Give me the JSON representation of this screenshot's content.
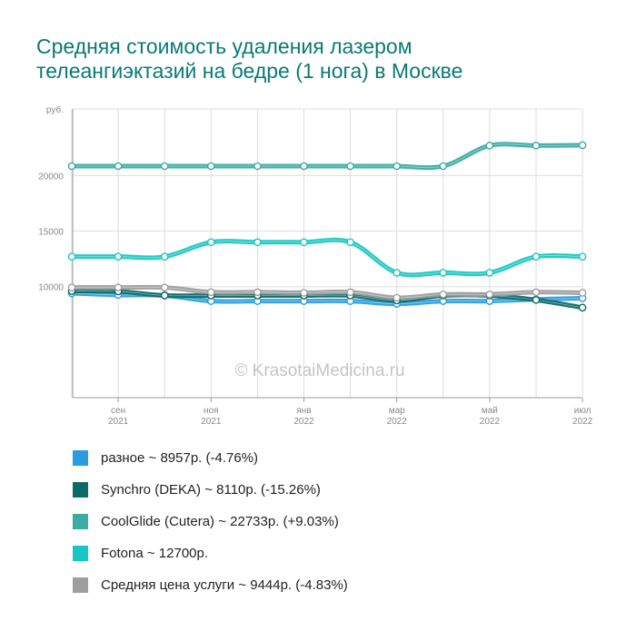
{
  "title_lines": [
    "Средняя стоимость удаления лазером",
    "телеангиэктазий на бедре (1 нога) в Москве"
  ],
  "watermark": "© KrasotaiMedicina.ru",
  "chart_data": {
    "type": "line",
    "unit_label": "руб.",
    "ylim": [
      0,
      26000
    ],
    "yticks": [
      10000,
      15000,
      20000
    ],
    "ytick_labels": [
      "10000",
      "15000",
      "20000"
    ],
    "x": [
      "2021-08",
      "2021-09",
      "2021-10",
      "2021-11",
      "2021-12",
      "2022-01",
      "2022-02",
      "2022-03",
      "2022-04",
      "2022-05",
      "2022-06",
      "2022-07"
    ],
    "x_tick_labels": [
      {
        "month": "сен",
        "year": "2021",
        "x": "2021-09"
      },
      {
        "month": "ноя",
        "year": "2021",
        "x": "2021-11"
      },
      {
        "month": "янв",
        "year": "2022",
        "x": "2022-01"
      },
      {
        "month": "мар",
        "year": "2022",
        "x": "2022-03"
      },
      {
        "month": "май",
        "year": "2022",
        "x": "2022-05"
      },
      {
        "month": "июл",
        "year": "2022",
        "x": "2022-07"
      }
    ],
    "grid": true,
    "series": [
      {
        "name": "разное",
        "legend": "разное ~ 8957р. (-4.76%)",
        "color": "#2a9de0",
        "values": [
          9400,
          9250,
          9200,
          8700,
          8700,
          8700,
          8700,
          8450,
          8700,
          8700,
          8850,
          8957
        ]
      },
      {
        "name": "Synchro (DEKA)",
        "legend": "Synchro (DEKA) ~ 8110р. (-15.26%)",
        "color": "#0d6b66",
        "values": [
          9600,
          9570,
          9200,
          9200,
          9200,
          9200,
          9200,
          8750,
          9200,
          9200,
          8800,
          8110
        ]
      },
      {
        "name": "CoolGlide (Cutera)",
        "legend": "CoolGlide (Cutera) ~ 22733р. (+9.03%)",
        "color": "#3aaca4",
        "values": [
          20850,
          20850,
          20850,
          20850,
          20850,
          20850,
          20850,
          20850,
          20850,
          22700,
          22700,
          22733
        ]
      },
      {
        "name": "Fotona",
        "legend": "Fotona ~ 12700р.",
        "color": "#18c7c3",
        "values": [
          12700,
          12700,
          12700,
          14000,
          14000,
          14000,
          14000,
          11250,
          11250,
          11250,
          12700,
          12700
        ]
      },
      {
        "name": "Средняя цена услуги",
        "legend": "Средняя цена услуги ~ 9444р. (-4.83%)",
        "color": "#9e9e9e",
        "values": [
          9920,
          9920,
          9920,
          9500,
          9500,
          9450,
          9500,
          9000,
          9300,
          9300,
          9500,
          9444
        ]
      }
    ]
  }
}
